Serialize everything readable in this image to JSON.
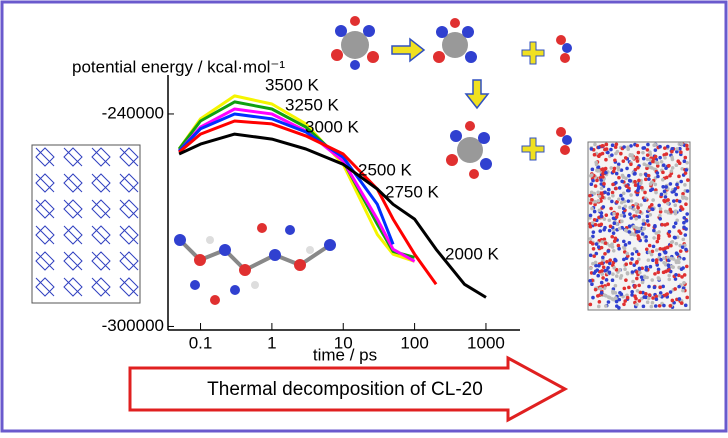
{
  "chart_data": {
    "type": "line",
    "xlabel": "time / ps",
    "ylabel": "potential energy / kcal·mol⁻¹",
    "banner": "Thermal decomposition of CL-20",
    "xscale": "log",
    "x": [
      0.05,
      0.1,
      0.3,
      1,
      3,
      10,
      30,
      50,
      100,
      200,
      500,
      1000
    ],
    "xlim": [
      0.035,
      3000
    ],
    "xticks": [
      0.1,
      1,
      10,
      100,
      1000
    ],
    "ylim": [
      -301000,
      -229000
    ],
    "yticks": [
      -240000,
      -300000
    ],
    "series": [
      {
        "name": "3500 K",
        "color": "#f5f500",
        "values": [
          -249900,
          -241400,
          -234900,
          -237200,
          -242800,
          -254200,
          -274000,
          -279600,
          -281600,
          null,
          null,
          null
        ]
      },
      {
        "name": "3250 K",
        "color": "#10a010",
        "values": [
          -249900,
          -242000,
          -236600,
          -238600,
          -243700,
          -253300,
          -271100,
          -278800,
          -280500,
          null,
          null,
          null
        ]
      },
      {
        "name": "3000 K",
        "color": "#ff00ff",
        "values": [
          -250500,
          -243700,
          -238600,
          -240000,
          -244800,
          -253300,
          -269700,
          -278200,
          -281600,
          null,
          null,
          null
        ]
      },
      {
        "name": "2750 K",
        "color": "#0030ff",
        "values": [
          -250500,
          -244200,
          -240000,
          -241400,
          -245100,
          -252200,
          -265500,
          -276800,
          null,
          null,
          null,
          null
        ]
      },
      {
        "name": "2500 K",
        "color": "#ff0000",
        "values": [
          -250800,
          -245700,
          -242000,
          -242800,
          -246200,
          -251300,
          -261200,
          -269700,
          -279600,
          -288100,
          null,
          null
        ]
      },
      {
        "name": "2000 K",
        "color": "#000000",
        "values": [
          -251300,
          -248500,
          -245700,
          -247100,
          -249900,
          -254200,
          -261200,
          -265500,
          -269700,
          -278200,
          -288100,
          -291800
        ]
      }
    ]
  }
}
